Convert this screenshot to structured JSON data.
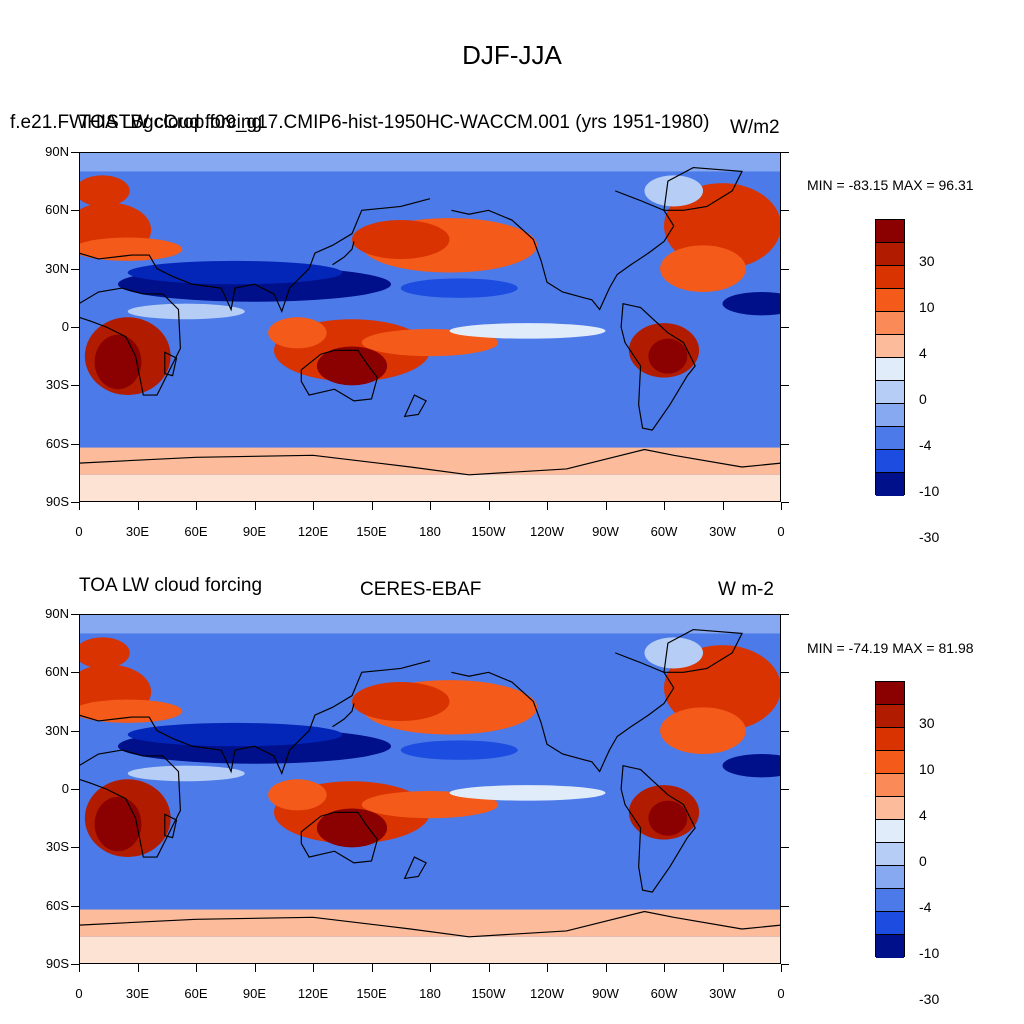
{
  "figure_title": "DJF-JJA",
  "colors": {
    "palette": [
      "#8b0000",
      "#b11c00",
      "#d83300",
      "#f45a1a",
      "#fa8a57",
      "#fcbb9a",
      "#fde3d3",
      "#e1ecfa",
      "#b6cef6",
      "#86a9f2",
      "#4c7ae8",
      "#1d4de0",
      "#0426b8",
      "#00108a"
    ],
    "land_outline": "#000000"
  },
  "colorbar": {
    "labels": [
      "30",
      "10",
      "4",
      "0",
      "-4",
      "-10",
      "-30"
    ]
  },
  "panels": [
    {
      "id": "model",
      "left_title": "TOA LW cloud forcing",
      "center_title": "f.e21.FWHISTBgcCrop.f09_g17.CMIP6-hist-1950HC-WACCM.001 (yrs 1951-1980)",
      "right_title": "W/m2",
      "min_max": "MIN = -83.15 MAX =  96.31",
      "lat_labels": [
        "90N",
        "60N",
        "30N",
        "0",
        "30S",
        "60S",
        "90S"
      ],
      "lon_labels": [
        "0",
        "30E",
        "60E",
        "90E",
        "120E",
        "150E",
        "180",
        "150W",
        "120W",
        "90W",
        "60W",
        "30W",
        "0"
      ]
    },
    {
      "id": "obs",
      "left_title": "TOA LW cloud forcing",
      "center_title": "CERES-EBAF",
      "right_title": "W m-2",
      "min_max": "MIN = -74.19 MAX =  81.98",
      "lat_labels": [
        "90N",
        "60N",
        "30N",
        "0",
        "30S",
        "60S",
        "90S"
      ],
      "lon_labels": [
        "0",
        "30E",
        "60E",
        "90E",
        "120E",
        "150E",
        "180",
        "150W",
        "120W",
        "90W",
        "60W",
        "30W",
        "0"
      ]
    }
  ],
  "chart_data": [
    {
      "type": "heatmap",
      "title": "DJF-JJA",
      "subtitle": "f.e21.FWHISTBgcCrop.f09_g17.CMIP6-hist-1950HC-WACCM.001 (yrs 1951-1980)",
      "variable": "TOA LW cloud forcing",
      "units": "W/m2",
      "min": -83.15,
      "max": 96.31,
      "xlim": [
        0,
        360
      ],
      "ylim": [
        -90,
        90
      ],
      "contour_levels": [
        -40,
        -30,
        -20,
        -10,
        -8,
        -4,
        -2,
        0,
        2,
        4,
        8,
        10,
        20,
        30,
        40
      ],
      "colorbar_labels": [
        "30",
        "10",
        "4",
        "0",
        "-4",
        "-10",
        "-30"
      ]
    },
    {
      "type": "heatmap",
      "title": "DJF-JJA",
      "subtitle": "CERES-EBAF",
      "variable": "TOA LW cloud forcing",
      "units": "W m-2",
      "min": -74.19,
      "max": 81.98,
      "xlim": [
        0,
        360
      ],
      "ylim": [
        -90,
        90
      ],
      "contour_levels": [
        -40,
        -30,
        -20,
        -10,
        -8,
        -4,
        -2,
        0,
        2,
        4,
        8,
        10,
        20,
        30,
        40
      ],
      "colorbar_labels": [
        "30",
        "10",
        "4",
        "0",
        "-4",
        "-10",
        "-30"
      ]
    }
  ]
}
